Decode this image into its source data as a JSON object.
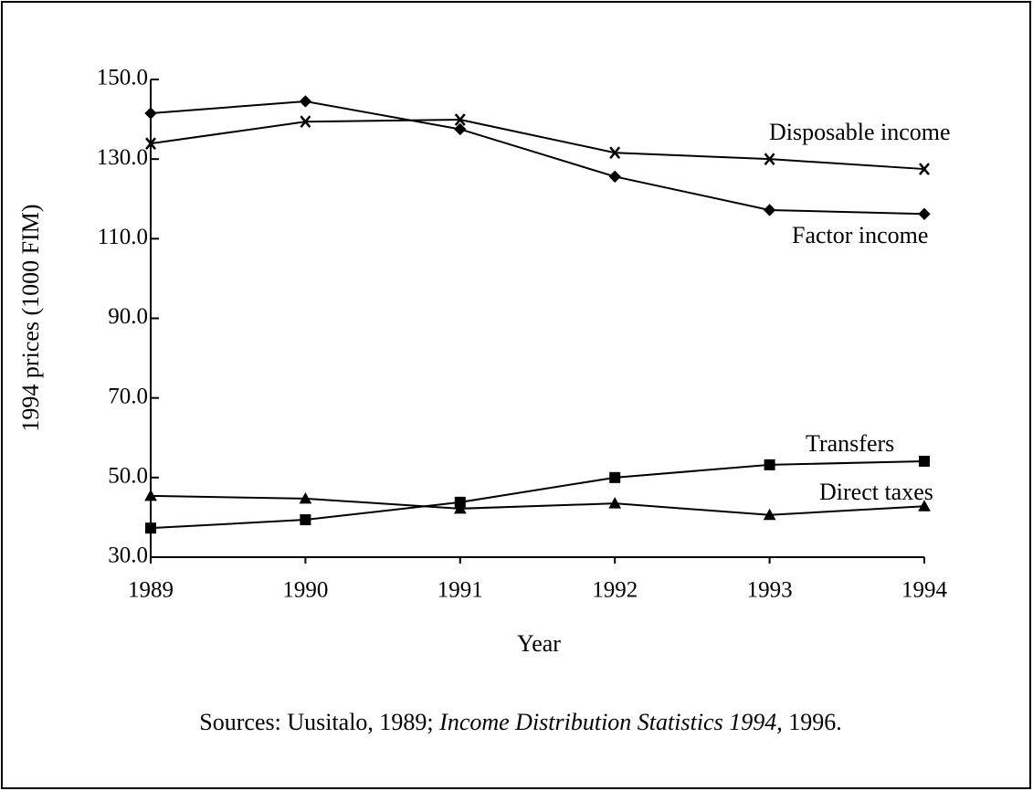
{
  "chart_data": {
    "type": "line",
    "y_label": "1994 prices (1000  FIM)",
    "x_label": "Year",
    "categories": [
      "1989",
      "1990",
      "1991",
      "1992",
      "1993",
      "1994"
    ],
    "ylim": [
      30,
      150
    ],
    "yticks": [
      {
        "value": 30,
        "label": "30.0"
      },
      {
        "value": 50,
        "label": "50.0"
      },
      {
        "value": 70,
        "label": "70.0"
      },
      {
        "value": 90,
        "label": "90.0"
      },
      {
        "value": 110,
        "label": "110.0"
      },
      {
        "value": 130,
        "label": "130.0"
      },
      {
        "value": 150,
        "label": "150.0"
      }
    ],
    "series": [
      {
        "name": "Disposable income",
        "color": "#000000",
        "marker": "x",
        "values": [
          133.9,
          139.4,
          139.9,
          131.6,
          130.0,
          127.5
        ]
      },
      {
        "name": "Factor income",
        "color": "#000000",
        "marker": "diamond",
        "values": [
          141.5,
          144.5,
          137.5,
          125.6,
          117.2,
          116.2
        ]
      },
      {
        "name": "Transfers",
        "color": "#000000",
        "marker": "square",
        "values": [
          37.3,
          39.4,
          43.8,
          50.0,
          53.2,
          54.1
        ]
      },
      {
        "name": "Direct taxes",
        "color": "#000000",
        "marker": "triangle",
        "values": [
          45.4,
          44.7,
          42.2,
          43.5,
          40.6,
          42.8
        ]
      }
    ],
    "source": [
      "Sources: Uusitalo, 1989; ",
      "Income Distribution Statistics 1994,",
      " 1996."
    ]
  }
}
